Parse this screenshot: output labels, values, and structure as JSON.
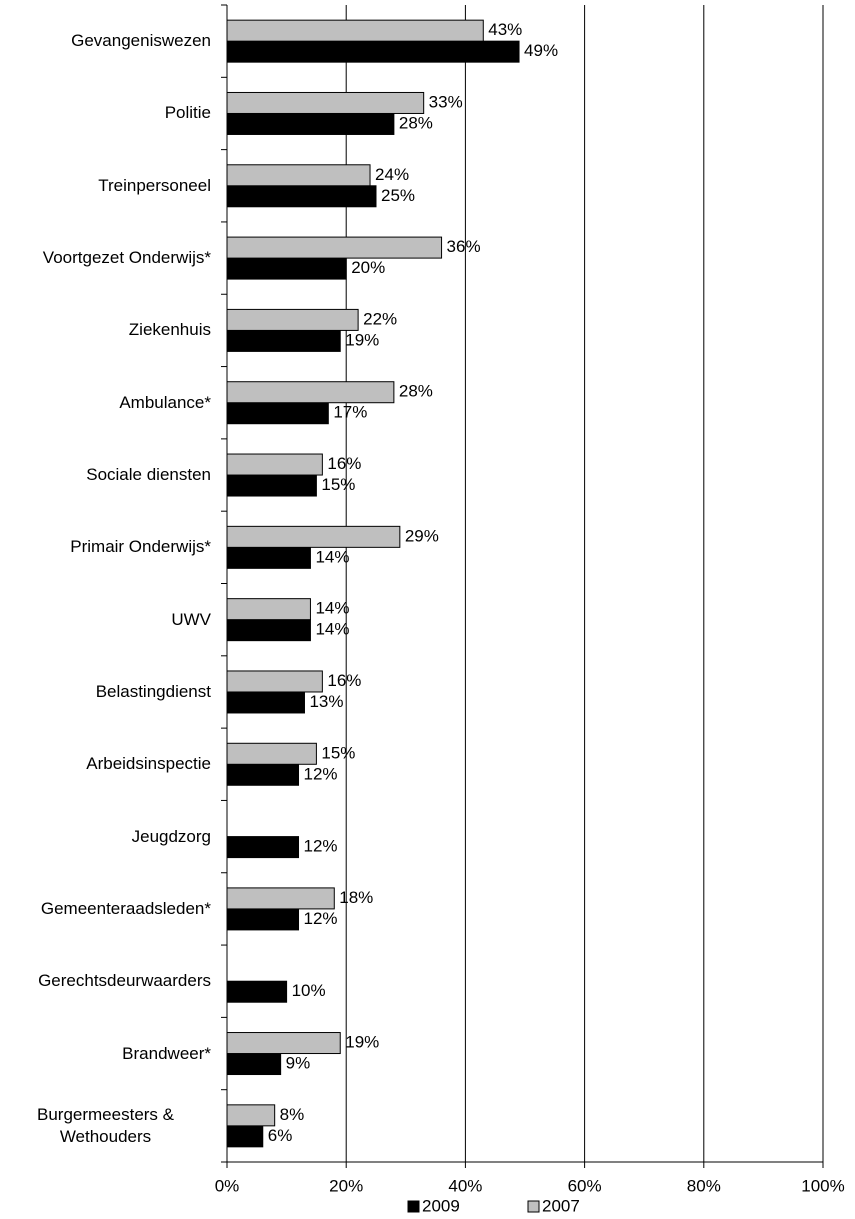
{
  "chart_data": {
    "type": "bar",
    "orientation": "horizontal",
    "categories": [
      "Gevangeniswezen",
      "Politie",
      "Treinpersoneel",
      "Voortgezet Onderwijs*",
      "Ziekenhuis",
      "Ambulance*",
      "Sociale diensten",
      "Primair Onderwijs*",
      "UWV",
      "Belastingdienst",
      "Arbeidsinspectie",
      "Jeugdzorg",
      "Gemeenteraadsleden*",
      "Gerechtsdeurwaarders",
      "Brandweer*",
      "Burgermeesters & Wethouders"
    ],
    "series": [
      {
        "name": "2009",
        "color": "#000000",
        "values": [
          49,
          28,
          25,
          20,
          19,
          17,
          15,
          14,
          14,
          13,
          12,
          12,
          12,
          10,
          9,
          6
        ],
        "value_labels": [
          "49%",
          "28%",
          "25%",
          "20%",
          "19%",
          "17%",
          "15%",
          "14%",
          "14%",
          "13%",
          "12%",
          "12%",
          "12%",
          "10%",
          "9%",
          "6%"
        ]
      },
      {
        "name": "2007",
        "color": "#bfbfbf",
        "values": [
          43,
          33,
          24,
          36,
          22,
          28,
          16,
          29,
          14,
          16,
          15,
          null,
          18,
          null,
          19,
          8
        ],
        "value_labels": [
          "43%",
          "33%",
          "24%",
          "36%",
          "22%",
          "28%",
          "16%",
          "29%",
          "14%",
          "16%",
          "15%",
          null,
          "18%",
          null,
          "19%",
          "8%"
        ]
      }
    ],
    "xlim": [
      0,
      100
    ],
    "xticks": [
      {
        "value": 0,
        "label": "0%"
      },
      {
        "value": 20,
        "label": "20%"
      },
      {
        "value": 40,
        "label": "40%"
      },
      {
        "value": 60,
        "label": "60%"
      },
      {
        "value": 80,
        "label": "80%"
      },
      {
        "value": 100,
        "label": "100%"
      }
    ],
    "grid": true,
    "legend": "bottom"
  }
}
